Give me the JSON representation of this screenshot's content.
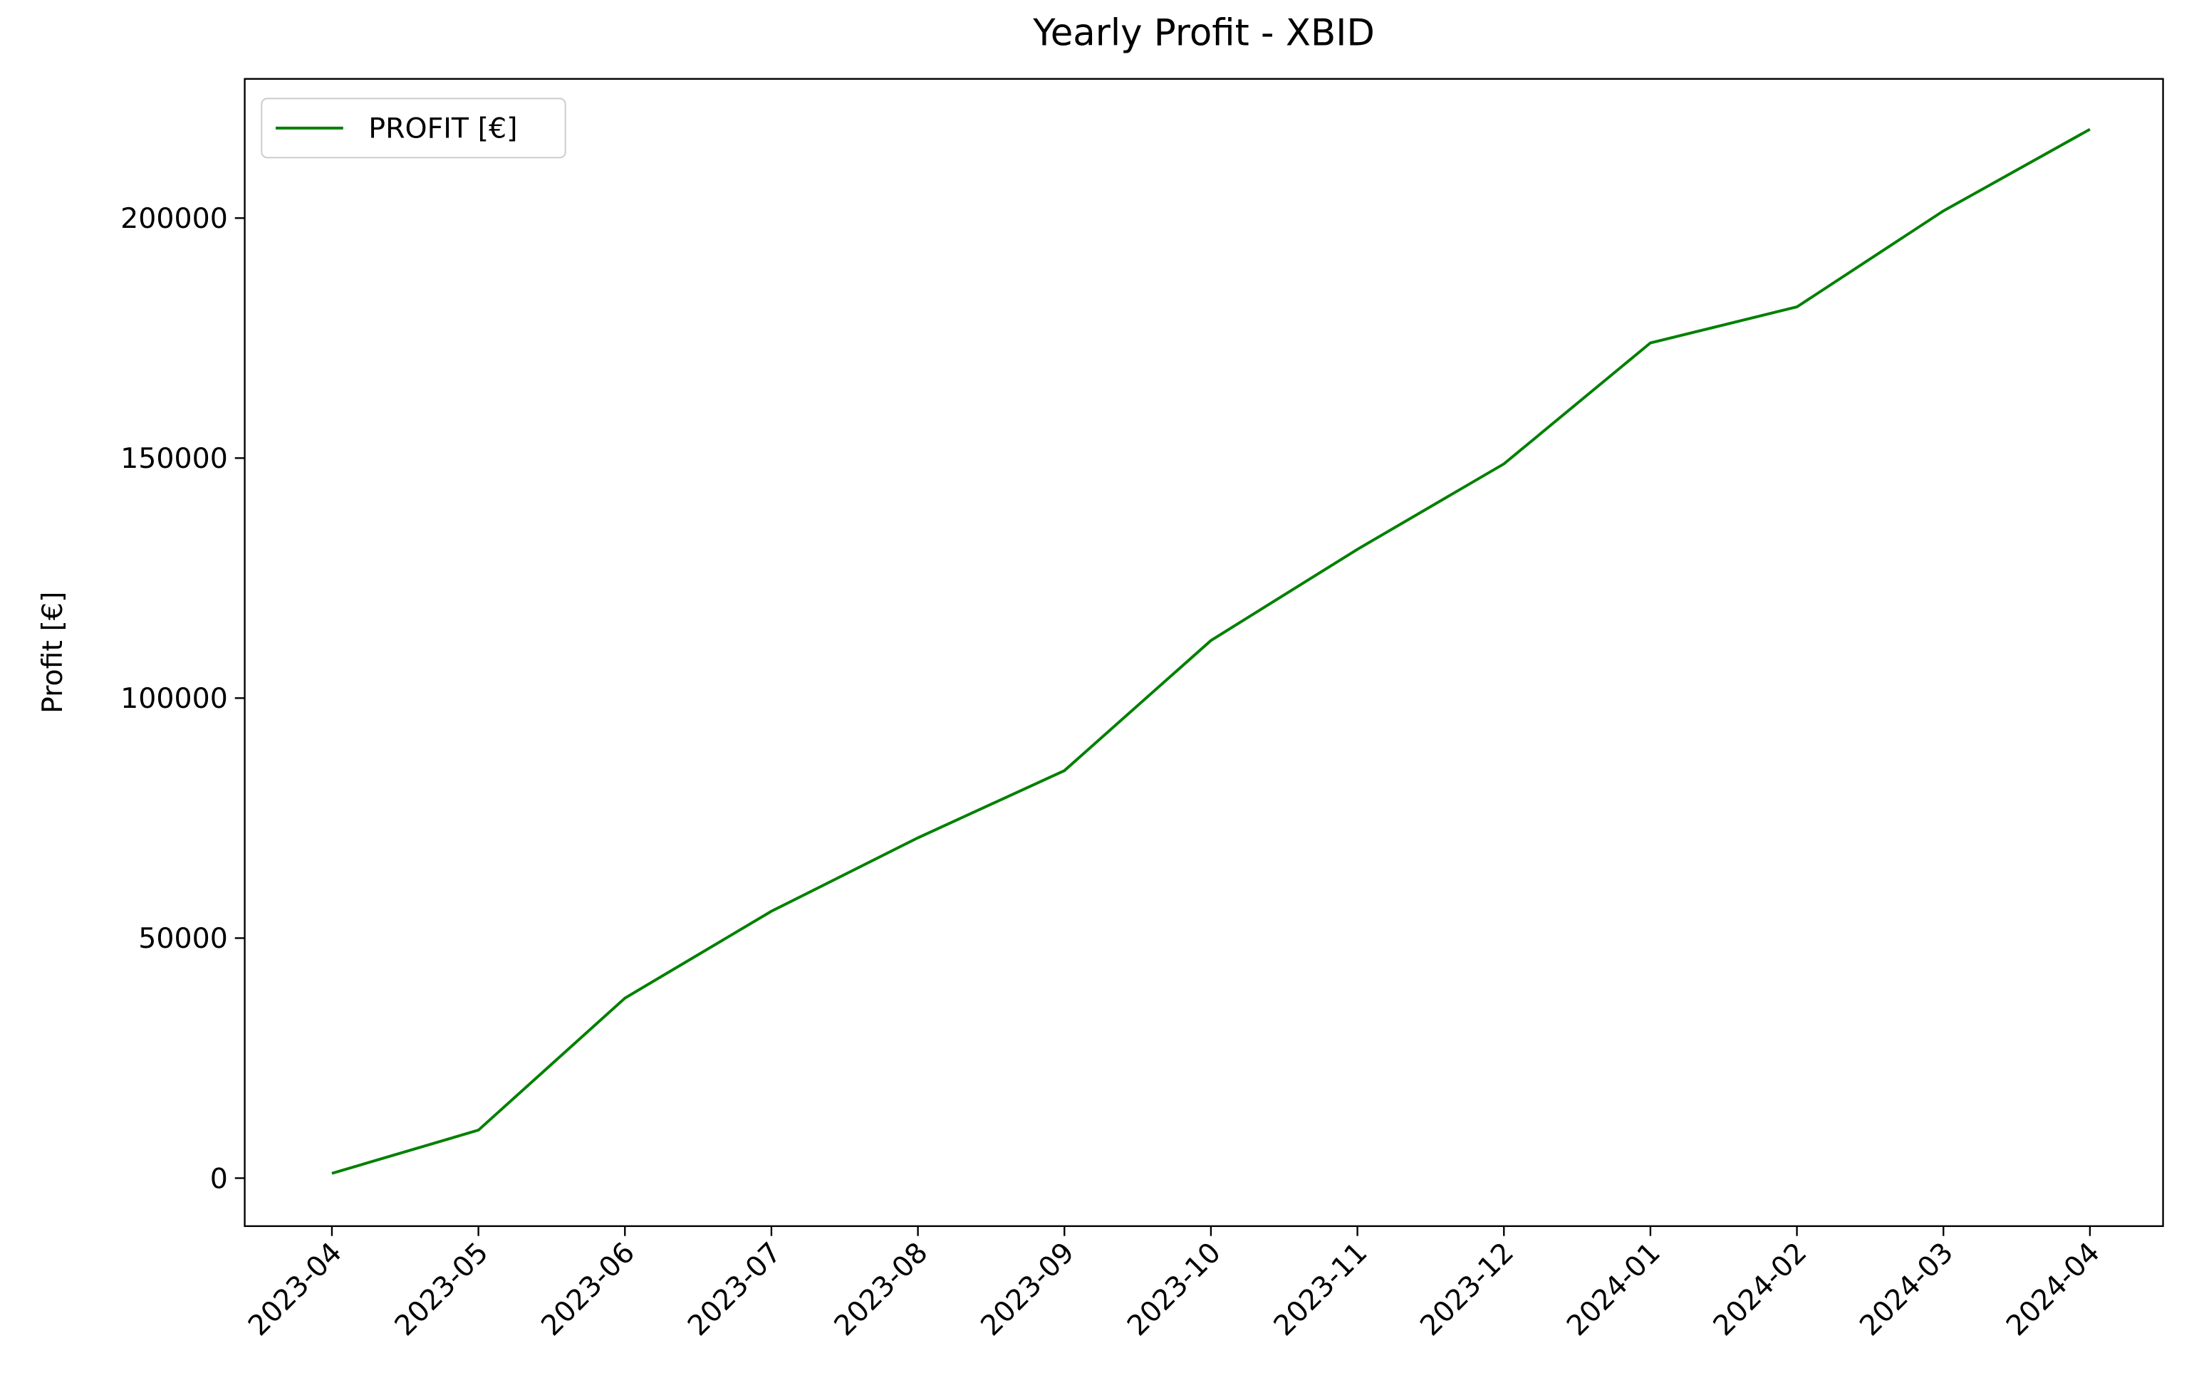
{
  "chart_data": {
    "type": "line",
    "title": "Yearly Profit - XBID",
    "ylabel": "Profit [€]",
    "x": [
      "2023-04",
      "2023-05",
      "2023-06",
      "2023-07",
      "2023-08",
      "2023-09",
      "2023-10",
      "2023-11",
      "2023-12",
      "2024-01",
      "2024-02",
      "2024-03",
      "2024-04"
    ],
    "series": [
      {
        "name": "PROFIT [€]",
        "color": "#008000",
        "values": [
          1000,
          10000,
          37500,
          55600,
          70900,
          84900,
          112000,
          131000,
          148800,
          174000,
          181500,
          201500,
          218500
        ]
      }
    ],
    "ylim": [
      -10000,
      229000
    ],
    "yticks": [
      0,
      50000,
      100000,
      150000,
      200000
    ],
    "legend": "upper left",
    "grid": false
  }
}
